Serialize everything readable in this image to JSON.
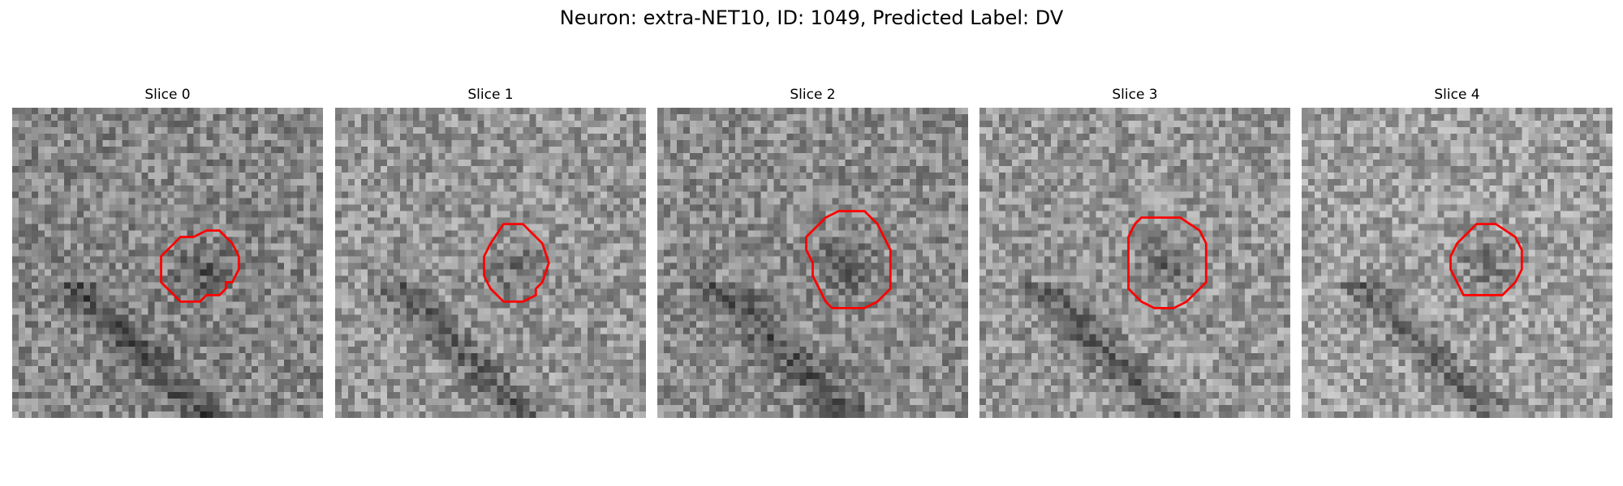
{
  "figure": {
    "title": "Neuron: extra-NET10, ID: 1049, Predicted Label: DV"
  },
  "colors": {
    "outline": "#ff0000"
  },
  "panels": [
    {
      "title": "Slice 0",
      "texture_seed": 11,
      "base_gray": 135,
      "outline_points": [
        [
          28,
          20
        ],
        [
          30,
          19
        ],
        [
          32,
          19
        ],
        [
          34,
          21
        ],
        [
          35,
          23
        ],
        [
          35,
          25
        ],
        [
          34,
          27
        ],
        [
          33,
          27
        ],
        [
          33,
          28
        ],
        [
          32,
          29
        ],
        [
          30,
          29
        ],
        [
          29,
          30
        ],
        [
          28,
          30
        ],
        [
          26,
          30
        ],
        [
          24,
          28
        ],
        [
          23,
          27
        ],
        [
          23,
          25
        ],
        [
          23,
          23
        ],
        [
          24,
          22
        ],
        [
          25,
          21
        ],
        [
          26,
          20
        ]
      ]
    },
    {
      "title": "Slice 1",
      "texture_seed": 23,
      "base_gray": 150,
      "outline_points": [
        [
          26,
          18
        ],
        [
          29,
          18
        ],
        [
          32,
          21
        ],
        [
          33,
          24
        ],
        [
          32,
          27
        ],
        [
          31,
          28
        ],
        [
          31,
          29
        ],
        [
          29,
          30
        ],
        [
          26,
          30
        ],
        [
          24,
          28
        ],
        [
          23,
          26
        ],
        [
          23,
          23
        ],
        [
          24,
          21
        ]
      ]
    },
    {
      "title": "Slice 2",
      "texture_seed": 37,
      "base_gray": 140,
      "outline_points": [
        [
          28,
          16
        ],
        [
          32,
          16
        ],
        [
          34,
          18
        ],
        [
          35,
          20
        ],
        [
          36,
          22
        ],
        [
          36,
          25
        ],
        [
          36,
          28
        ],
        [
          34,
          30
        ],
        [
          32,
          31
        ],
        [
          29,
          31
        ],
        [
          27,
          31
        ],
        [
          26,
          30
        ],
        [
          25,
          28
        ],
        [
          24,
          26
        ],
        [
          24,
          24
        ],
        [
          23,
          22
        ],
        [
          23,
          20
        ],
        [
          24,
          19
        ],
        [
          25,
          18
        ],
        [
          26,
          17
        ]
      ]
    },
    {
      "title": "Slice 3",
      "texture_seed": 51,
      "base_gray": 150,
      "outline_points": [
        [
          25,
          17
        ],
        [
          28,
          17
        ],
        [
          31,
          17
        ],
        [
          34,
          19
        ],
        [
          35,
          21
        ],
        [
          35,
          24
        ],
        [
          35,
          27
        ],
        [
          33,
          29
        ],
        [
          32,
          30
        ],
        [
          30,
          31
        ],
        [
          27,
          31
        ],
        [
          25,
          30
        ],
        [
          24,
          29
        ],
        [
          23,
          28
        ],
        [
          23,
          25
        ],
        [
          23,
          22
        ],
        [
          23,
          20
        ],
        [
          24,
          18
        ]
      ]
    },
    {
      "title": "Slice 4",
      "texture_seed": 67,
      "base_gray": 160,
      "outline_points": [
        [
          27,
          18
        ],
        [
          30,
          18
        ],
        [
          33,
          20
        ],
        [
          34,
          22
        ],
        [
          34,
          25
        ],
        [
          33,
          27
        ],
        [
          31,
          29
        ],
        [
          28,
          29
        ],
        [
          25,
          29
        ],
        [
          24,
          27
        ],
        [
          23,
          25
        ],
        [
          23,
          23
        ],
        [
          24,
          21
        ],
        [
          25,
          20
        ]
      ]
    }
  ]
}
